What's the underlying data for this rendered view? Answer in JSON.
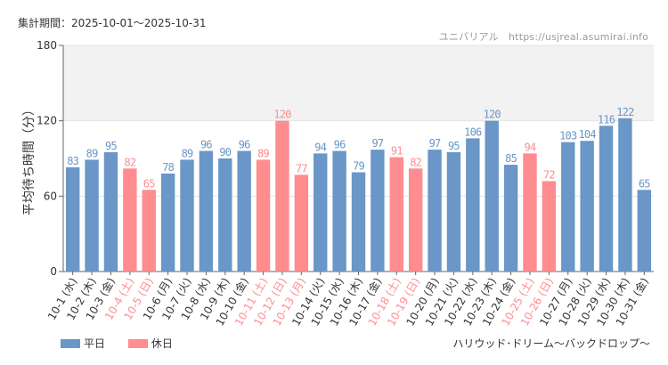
{
  "header": {
    "period": "集計期間：2025-10-01～2025-10-31",
    "site": "ユニバリアル　https://usjreal.asumirai.info"
  },
  "footer": {
    "attraction": "ハリウッド･ドリーム～バックドロップ～"
  },
  "legend": {
    "weekday": "平日",
    "holiday": "休日"
  },
  "colors": {
    "weekday": "#6a96c8",
    "holiday": "#ff8c8f",
    "band": "#f2f2f2",
    "axis": "#666666"
  },
  "chart_data": {
    "type": "bar",
    "ylabel": "平均待ち時間（分）",
    "ylim": [
      0,
      180
    ],
    "yticks": [
      0,
      60,
      120,
      180
    ],
    "categories": [
      "10-1 (水)",
      "10-2 (木)",
      "10-3 (金)",
      "10-4 (土)",
      "10-5 (日)",
      "10-6 (月)",
      "10-7 (火)",
      "10-8 (水)",
      "10-9 (木)",
      "10-10 (金)",
      "10-11 (土)",
      "10-12 (日)",
      "10-13 (月)",
      "10-14 (火)",
      "10-15 (水)",
      "10-16 (木)",
      "10-17 (金)",
      "10-18 (土)",
      "10-19 (日)",
      "10-20 (月)",
      "10-21 (火)",
      "10-22 (水)",
      "10-23 (木)",
      "10-24 (金)",
      "10-25 (土)",
      "10-26 (日)",
      "10-27 (月)",
      "10-28 (火)",
      "10-29 (水)",
      "10-30 (木)",
      "10-31 (金)"
    ],
    "values": [
      83,
      89,
      95,
      82,
      65,
      78,
      89,
      96,
      90,
      96,
      89,
      120,
      77,
      94,
      96,
      79,
      97,
      91,
      82,
      97,
      95,
      106,
      120,
      85,
      94,
      72,
      103,
      104,
      116,
      122,
      65
    ],
    "holiday": [
      false,
      false,
      false,
      true,
      true,
      false,
      false,
      false,
      false,
      false,
      true,
      true,
      true,
      false,
      false,
      false,
      false,
      true,
      true,
      false,
      false,
      false,
      false,
      false,
      true,
      true,
      false,
      false,
      false,
      false,
      false
    ]
  }
}
